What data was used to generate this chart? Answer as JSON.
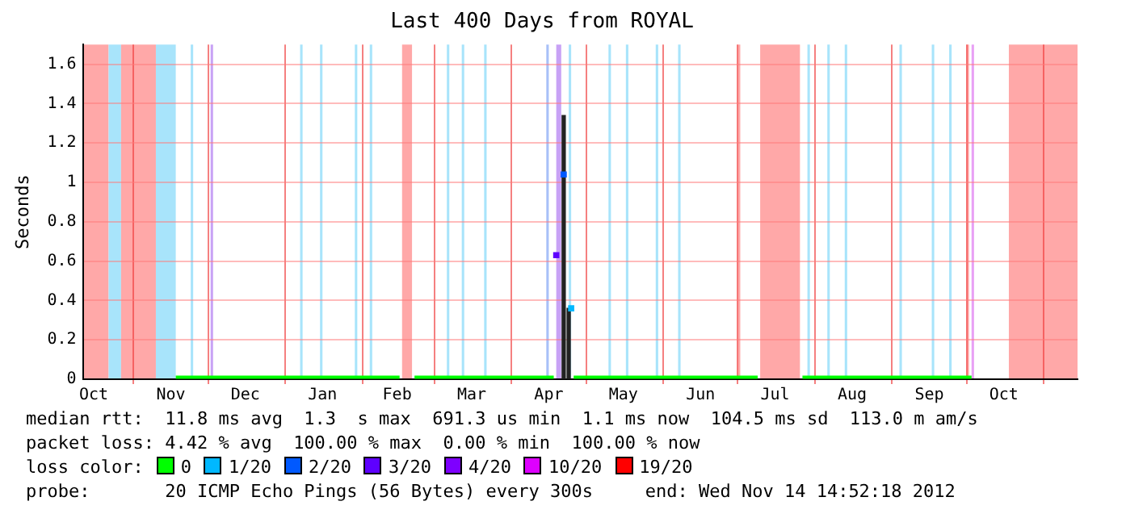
{
  "chart_data": {
    "type": "line",
    "title": "Last 400 Days from ROYAL",
    "ylabel": "Seconds",
    "xlim": [
      "2011-10-11T14:52",
      "2012-11-14T14:52"
    ],
    "xticks": [
      {
        "value": "2011-10-16",
        "label": "Oct"
      },
      {
        "value": "2011-11-01",
        "label": null
      },
      {
        "value": "2011-11-16",
        "label": "Nov"
      },
      {
        "value": "2011-12-01",
        "label": null
      },
      {
        "value": "2011-12-16",
        "label": "Dec"
      },
      {
        "value": "2012-01-01",
        "label": null
      },
      {
        "value": "2012-01-16",
        "label": "Jan"
      },
      {
        "value": "2012-02-01",
        "label": null
      },
      {
        "value": "2012-02-15",
        "label": "Feb"
      },
      {
        "value": "2012-03-01",
        "label": null
      },
      {
        "value": "2012-03-16",
        "label": "Mar"
      },
      {
        "value": "2012-04-01",
        "label": null
      },
      {
        "value": "2012-04-16",
        "label": "Apr"
      },
      {
        "value": "2012-05-01",
        "label": null
      },
      {
        "value": "2012-05-16",
        "label": "May"
      },
      {
        "value": "2012-06-01",
        "label": null
      },
      {
        "value": "2012-06-16",
        "label": "Jun"
      },
      {
        "value": "2012-07-01",
        "label": null
      },
      {
        "value": "2012-07-16",
        "label": "Jul"
      },
      {
        "value": "2012-08-01",
        "label": null
      },
      {
        "value": "2012-08-16",
        "label": "Aug"
      },
      {
        "value": "2012-09-01",
        "label": null
      },
      {
        "value": "2012-09-16",
        "label": "Sep"
      },
      {
        "value": "2012-10-01",
        "label": null
      },
      {
        "value": "2012-10-16",
        "label": "Oct"
      },
      {
        "value": "2012-11-01",
        "label": null
      }
    ],
    "ylim": [
      0,
      1.7
    ],
    "yticks": [
      0,
      0.2,
      0.4,
      0.6,
      0.8,
      1,
      1.2,
      1.4,
      1.6
    ],
    "grid": true,
    "legend": "bottom",
    "legend_title": "loss color:",
    "series": [
      {
        "name": "0",
        "color": "#00ff00",
        "x": [
          "2011-11-18",
          "2012-02-16",
          "2012-02-17",
          "2012-02-22",
          "2012-04-18",
          "2012-04-19",
          "2012-04-26",
          "2012-07-09",
          "2012-07-10",
          "2012-07-27",
          "2012-10-03"
        ],
        "values": [
          0.01,
          0.01,
          null,
          0.01,
          0.01,
          null,
          0.01,
          0.01,
          null,
          0.01,
          0.01
        ]
      },
      {
        "name": "1/20",
        "color": "#00b8ff",
        "type": "scatter",
        "x": [
          "2012-04-25"
        ],
        "values": [
          0.36
        ]
      },
      {
        "name": "2/20",
        "color": "#0059ff",
        "type": "scatter",
        "x": [
          "2012-04-22"
        ],
        "values": [
          1.04
        ]
      },
      {
        "name": "3/20",
        "color": "#5e00ff",
        "type": "scatter",
        "x": [
          "2012-04-19"
        ],
        "values": [
          0.63
        ]
      },
      {
        "name": "4/20",
        "color": "#7e00ff",
        "type": "scatter"
      },
      {
        "name": "10/20",
        "color": "#dd00ff",
        "type": "scatter"
      },
      {
        "name": "19/20",
        "color": "#ff0000",
        "type": "scatter"
      },
      {
        "type": "bar",
        "color": "#222222",
        "x": [
          "2012-04-22",
          "2012-04-24"
        ],
        "values": [
          1.34,
          0.36
        ]
      }
    ],
    "bands": [
      {
        "axis": "x",
        "from": "2011-10-11T14:52",
        "to": "2011-10-22",
        "color": "#ffa8a8"
      },
      {
        "axis": "x",
        "from": "2011-10-22",
        "to": "2011-10-27",
        "color": "#a8e4fb"
      },
      {
        "axis": "x",
        "from": "2011-10-27",
        "to": "2011-11-10",
        "color": "#ffa8a8"
      },
      {
        "axis": "x",
        "from": "2011-11-10",
        "to": "2011-11-18",
        "color": "#a8e4fb"
      },
      {
        "axis": "x",
        "from": "2011-11-24",
        "to": "2011-11-25",
        "color": "#a8e4fb"
      },
      {
        "axis": "x",
        "from": "2011-12-02",
        "to": "2011-12-03",
        "color": "#c8a2f5"
      },
      {
        "axis": "x",
        "from": "2012-01-07",
        "to": "2012-01-08",
        "color": "#a8e4fb"
      },
      {
        "axis": "x",
        "from": "2012-01-15",
        "to": "2012-01-16",
        "color": "#a8e4fb"
      },
      {
        "axis": "x",
        "from": "2012-01-29",
        "to": "2012-01-30",
        "color": "#a8e4fb"
      },
      {
        "axis": "x",
        "from": "2012-02-04",
        "to": "2012-02-05",
        "color": "#a8e4fb"
      },
      {
        "axis": "x",
        "from": "2012-02-17",
        "to": "2012-02-21",
        "color": "#ffa8a8"
      },
      {
        "axis": "x",
        "from": "2012-03-06",
        "to": "2012-03-07",
        "color": "#a8e4fb"
      },
      {
        "axis": "x",
        "from": "2012-03-12",
        "to": "2012-03-13",
        "color": "#a8e4fb"
      },
      {
        "axis": "x",
        "from": "2012-03-21",
        "to": "2012-03-22",
        "color": "#a8e4fb"
      },
      {
        "axis": "x",
        "from": "2012-04-15",
        "to": "2012-04-16",
        "color": "#a8c0f8"
      },
      {
        "axis": "x",
        "from": "2012-04-19",
        "to": "2012-04-21",
        "color": "#c8a2f5"
      },
      {
        "axis": "x",
        "from": "2012-04-24",
        "to": "2012-04-25",
        "color": "#a8e4fb"
      },
      {
        "axis": "x",
        "from": "2012-05-10",
        "to": "2012-05-11",
        "color": "#a8e4fb"
      },
      {
        "axis": "x",
        "from": "2012-05-17",
        "to": "2012-05-18",
        "color": "#a8e4fb"
      },
      {
        "axis": "x",
        "from": "2012-05-29",
        "to": "2012-05-30",
        "color": "#a8e4fb"
      },
      {
        "axis": "x",
        "from": "2012-06-07",
        "to": "2012-06-08",
        "color": "#a8e4fb"
      },
      {
        "axis": "x",
        "from": "2012-07-01",
        "to": "2012-07-02",
        "color": "#ffa8a8"
      },
      {
        "axis": "x",
        "from": "2012-07-10",
        "to": "2012-07-26",
        "color": "#ffa8a8"
      },
      {
        "axis": "x",
        "from": "2012-07-29",
        "to": "2012-07-30",
        "color": "#a8e4fb"
      },
      {
        "axis": "x",
        "from": "2012-08-06",
        "to": "2012-08-07",
        "color": "#a8e4fb"
      },
      {
        "axis": "x",
        "from": "2012-08-13",
        "to": "2012-08-14",
        "color": "#a8e4fb"
      },
      {
        "axis": "x",
        "from": "2012-09-04",
        "to": "2012-09-05",
        "color": "#a8e4fb"
      },
      {
        "axis": "x",
        "from": "2012-09-17",
        "to": "2012-09-18",
        "color": "#a8e4fb"
      },
      {
        "axis": "x",
        "from": "2012-09-24",
        "to": "2012-09-25",
        "color": "#a8e4fb"
      },
      {
        "axis": "x",
        "from": "2012-10-01",
        "to": "2012-10-02",
        "color": "#ffa8a8"
      },
      {
        "axis": "x",
        "from": "2012-10-03",
        "to": "2012-10-04",
        "color": "#e8a0f5"
      },
      {
        "axis": "x",
        "from": "2012-10-18",
        "to": "2012-11-14T14:52",
        "color": "#ffa8a8"
      }
    ],
    "annotations": [
      "median rtt:  11.8 ms avg  1.3  s max  691.3 us min  1.1 ms now  104.5 ms sd  113.0 m am/s",
      "packet loss: 4.42 % avg  100.00 % max  0.00 % min  100.00 % now",
      "probe:       20 ICMP Echo Pings (56 Bytes) every 300s",
      "end: Wed Nov 14 14:52:18 2012"
    ]
  }
}
